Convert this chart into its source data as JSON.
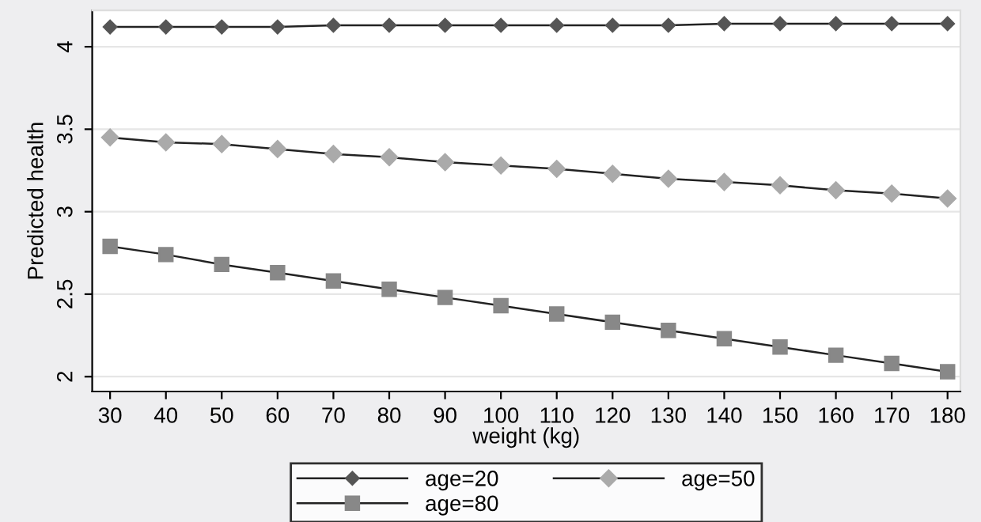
{
  "chart_data": {
    "type": "line",
    "xlabel": "weight (kg)",
    "ylabel": "Predicted health",
    "x": [
      30,
      40,
      50,
      60,
      70,
      80,
      90,
      100,
      110,
      120,
      130,
      140,
      150,
      160,
      170,
      180
    ],
    "series": [
      {
        "name": "age=20",
        "color": "#555555",
        "marker": "diamond",
        "values": [
          4.12,
          4.12,
          4.12,
          4.12,
          4.13,
          4.13,
          4.13,
          4.13,
          4.13,
          4.13,
          4.13,
          4.14,
          4.14,
          4.14,
          4.14,
          4.14
        ]
      },
      {
        "name": "age=50",
        "color": "#aaaaaa",
        "marker": "diamond",
        "values": [
          3.45,
          3.42,
          3.41,
          3.38,
          3.35,
          3.33,
          3.3,
          3.28,
          3.26,
          3.23,
          3.2,
          3.18,
          3.16,
          3.13,
          3.11,
          3.08
        ]
      },
      {
        "name": "age=80",
        "color": "#888888",
        "marker": "square",
        "values": [
          2.79,
          2.74,
          2.68,
          2.63,
          2.58,
          2.53,
          2.48,
          2.43,
          2.38,
          2.33,
          2.28,
          2.23,
          2.18,
          2.13,
          2.08,
          2.03
        ]
      }
    ],
    "xlim": [
      26.8,
      182.3
    ],
    "ylim": [
      1.91,
      4.22
    ],
    "xticks": [
      30,
      40,
      50,
      60,
      70,
      80,
      90,
      100,
      110,
      120,
      130,
      140,
      150,
      160,
      170,
      180
    ],
    "yticks": [
      2,
      2.5,
      3,
      3.5,
      4
    ],
    "grid": "y",
    "legend": "bottom",
    "line_style": "solid"
  }
}
